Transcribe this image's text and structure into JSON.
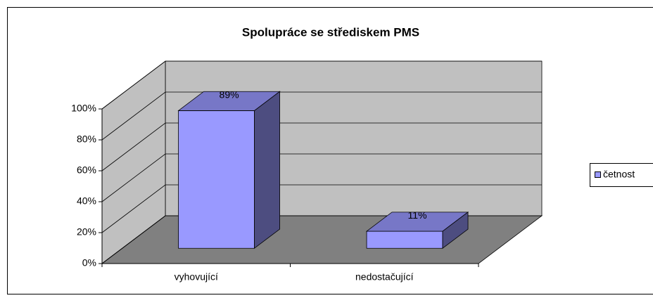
{
  "chart_data": {
    "type": "bar3d",
    "title": "Spolupráce se střediskem PMS",
    "categories": [
      "vyhovující",
      "nedostačující"
    ],
    "series": [
      {
        "name": "četnost",
        "color": "#9999ff",
        "values": [
          89,
          11
        ],
        "value_labels": [
          "89%",
          "11%"
        ]
      }
    ],
    "ylim": [
      0,
      100
    ],
    "yticks": [
      {
        "value": 0,
        "label": "0%"
      },
      {
        "value": 20,
        "label": "20%"
      },
      {
        "value": 40,
        "label": "40%"
      },
      {
        "value": 60,
        "label": "60%"
      },
      {
        "value": 80,
        "label": "80%"
      },
      {
        "value": 100,
        "label": "100%"
      }
    ],
    "grid": true,
    "legend": "right"
  }
}
